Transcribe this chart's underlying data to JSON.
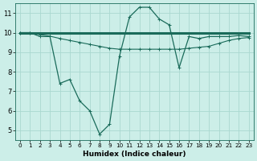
{
  "xlabel": "Humidex (Indice chaleur)",
  "bg_color": "#cceee8",
  "grid_color": "#aad8d0",
  "line_color": "#1a6b5a",
  "xlim": [
    -0.5,
    23.5
  ],
  "ylim": [
    4.5,
    11.5
  ],
  "xticks": [
    0,
    1,
    2,
    3,
    4,
    5,
    6,
    7,
    8,
    9,
    10,
    11,
    12,
    13,
    14,
    15,
    16,
    17,
    18,
    19,
    20,
    21,
    22,
    23
  ],
  "yticks": [
    5,
    6,
    7,
    8,
    9,
    10,
    11
  ],
  "line1_x": [
    0,
    1,
    2,
    3,
    4,
    5,
    6,
    7,
    8,
    9,
    10,
    11,
    12,
    13,
    14,
    15,
    16,
    17,
    18,
    19,
    20,
    21,
    22,
    23
  ],
  "line1_y": [
    10.0,
    10.0,
    9.8,
    9.8,
    7.4,
    7.6,
    6.5,
    6.0,
    4.8,
    5.3,
    8.8,
    10.8,
    11.3,
    11.3,
    10.7,
    10.4,
    8.2,
    9.8,
    9.7,
    9.8,
    9.8,
    9.8,
    9.85,
    9.8
  ],
  "line2_x": [
    0,
    1,
    2,
    3,
    4,
    5,
    6,
    7,
    8,
    9,
    10,
    11,
    12,
    13,
    14,
    15,
    16,
    17,
    18,
    19,
    20,
    21,
    22,
    23
  ],
  "line2_y": [
    9.97,
    9.97,
    9.97,
    9.97,
    9.97,
    9.97,
    9.97,
    9.97,
    9.97,
    9.97,
    9.97,
    9.97,
    9.97,
    9.97,
    9.97,
    9.97,
    9.97,
    9.97,
    9.97,
    9.97,
    9.97,
    9.97,
    9.97,
    9.97
  ],
  "line3_x": [
    0,
    1,
    2,
    3,
    4,
    5,
    6,
    7,
    8,
    9,
    10,
    11,
    12,
    13,
    14,
    15,
    16,
    17,
    18,
    19,
    20,
    21,
    22,
    23
  ],
  "line3_y": [
    10.0,
    10.0,
    9.9,
    9.82,
    9.7,
    9.6,
    9.5,
    9.4,
    9.3,
    9.2,
    9.15,
    9.15,
    9.15,
    9.15,
    9.15,
    9.15,
    9.15,
    9.2,
    9.25,
    9.3,
    9.45,
    9.6,
    9.7,
    9.75
  ],
  "figsize": [
    3.2,
    2.0
  ],
  "dpi": 100
}
